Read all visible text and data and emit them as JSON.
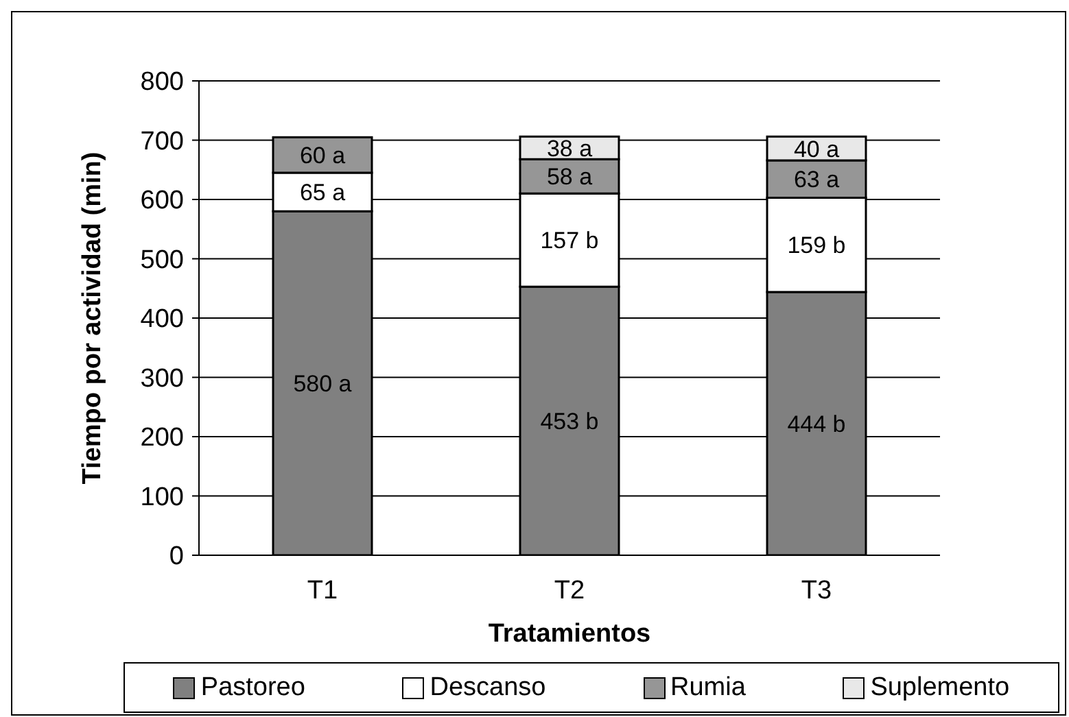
{
  "chart_data": {
    "type": "bar",
    "stacked": true,
    "xlabel": "Tratamientos",
    "ylabel": "Tiempo por actividad (min)",
    "categories": [
      "T1",
      "T2",
      "T3"
    ],
    "series": [
      {
        "name": "Pastoreo",
        "color": "#808080",
        "values": [
          580,
          453,
          444
        ],
        "value_labels": [
          "580 a",
          "453 b",
          "444 b"
        ]
      },
      {
        "name": "Descanso",
        "color": "#ffffff",
        "values": [
          65,
          157,
          159
        ],
        "value_labels": [
          "65 a",
          "157 b",
          "159 b"
        ]
      },
      {
        "name": "Rumia",
        "color": "#969696",
        "values": [
          60,
          58,
          63
        ],
        "value_labels": [
          "60 a",
          "58 a",
          "63 a"
        ]
      },
      {
        "name": "Suplemento",
        "color": "#e8e8e8",
        "values": [
          null,
          38,
          40
        ],
        "value_labels": [
          null,
          "38 a",
          "40 a"
        ]
      }
    ],
    "ylim": [
      0,
      800
    ],
    "yticks": [
      0,
      100,
      200,
      300,
      400,
      500,
      600,
      700,
      800
    ],
    "grid": "y",
    "legend": "bottom"
  }
}
